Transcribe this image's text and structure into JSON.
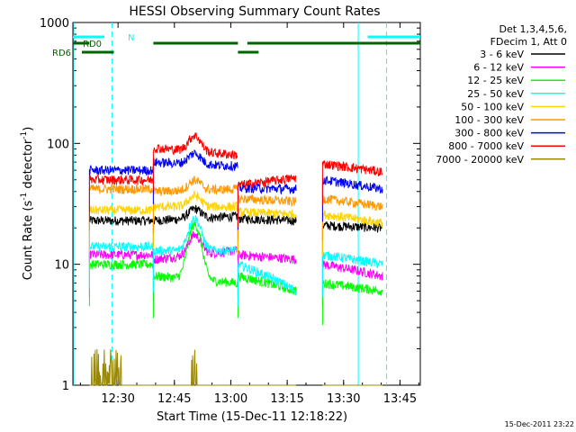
{
  "chart_data": {
    "type": "line",
    "title": "HESSI Observing Summary Count Rates",
    "xlabel": "Start Time (15-Dec-11 12:18:22)",
    "ylabel_main": "Count Rate (s",
    "ylabel_sup1": "-1",
    "ylabel_mid": " detector",
    "ylabel_sup2": "-1",
    "ylabel_end": ")",
    "yscale": "log",
    "ylim": [
      1,
      1000
    ],
    "xlim_minutes": [
      -0.4,
      92
    ],
    "x_ticks": [
      {
        "label": "12:30",
        "t": 11.6
      },
      {
        "label": "12:45",
        "t": 26.6
      },
      {
        "label": "13:00",
        "t": 41.6
      },
      {
        "label": "13:15",
        "t": 56.6
      },
      {
        "label": "13:30",
        "t": 71.6
      },
      {
        "label": "13:45",
        "t": 86.6
      }
    ],
    "y_ticks": [
      {
        "label": "1",
        "v": 1
      },
      {
        "label": "10",
        "v": 10
      },
      {
        "label": "100",
        "v": 100
      },
      {
        "label": "1000",
        "v": 1000
      }
    ],
    "legend_header": [
      "Det 1,3,4,5,6,",
      "FDecim 1, Att 0"
    ],
    "segments": [
      [
        4,
        21
      ],
      [
        21,
        43.5
      ],
      [
        43.5,
        59
      ],
      [
        66,
        82
      ]
    ],
    "series": [
      {
        "name": "3 - 6 keV",
        "color": "#000000",
        "values": [
          23,
          23,
          25,
          30,
          24,
          23,
          21,
          20
        ]
      },
      {
        "name": "6 - 12 keV",
        "color": "#ff00ff",
        "values": [
          12,
          11,
          13,
          19,
          12,
          11,
          10,
          8
        ]
      },
      {
        "name": "12 - 25 keV",
        "color": "#00ff00",
        "values": [
          10,
          8,
          7,
          20,
          8,
          6,
          7,
          6
        ]
      },
      {
        "name": "25 - 50 keV",
        "color": "#00ffff",
        "values": [
          14,
          13,
          13,
          24,
          10,
          6,
          12,
          10
        ]
      },
      {
        "name": "50 - 100 keV",
        "color": "#ffd400",
        "values": [
          28,
          30,
          30,
          37,
          27,
          26,
          26,
          22
        ]
      },
      {
        "name": "100 - 300 keV",
        "color": "#ff9900",
        "values": [
          42,
          40,
          42,
          51,
          35,
          33,
          35,
          30
        ]
      },
      {
        "name": "300 - 800 keV",
        "color": "#0000ff",
        "values": [
          60,
          70,
          65,
          80,
          43,
          42,
          50,
          42
        ]
      },
      {
        "name": "800 - 7000 keV",
        "color": "#ff0000",
        "values": [
          50,
          92,
          80,
          108,
          45,
          52,
          68,
          58
        ]
      },
      {
        "name": "7000 - 20000 keV",
        "color": "#998800",
        "values": [
          1.6,
          1.2,
          1.0,
          1.8,
          1.0,
          1.0,
          1.0,
          1.0
        ]
      }
    ],
    "flags": [
      {
        "label": "RD0",
        "color": "#006400"
      },
      {
        "label": "RD6",
        "color": "#006400"
      },
      {
        "label": "N",
        "color": "#00ffff"
      }
    ],
    "cyan_marker_times": [
      10,
      75.5,
      83
    ],
    "timestamp": "15-Dec-2011 23:22"
  }
}
